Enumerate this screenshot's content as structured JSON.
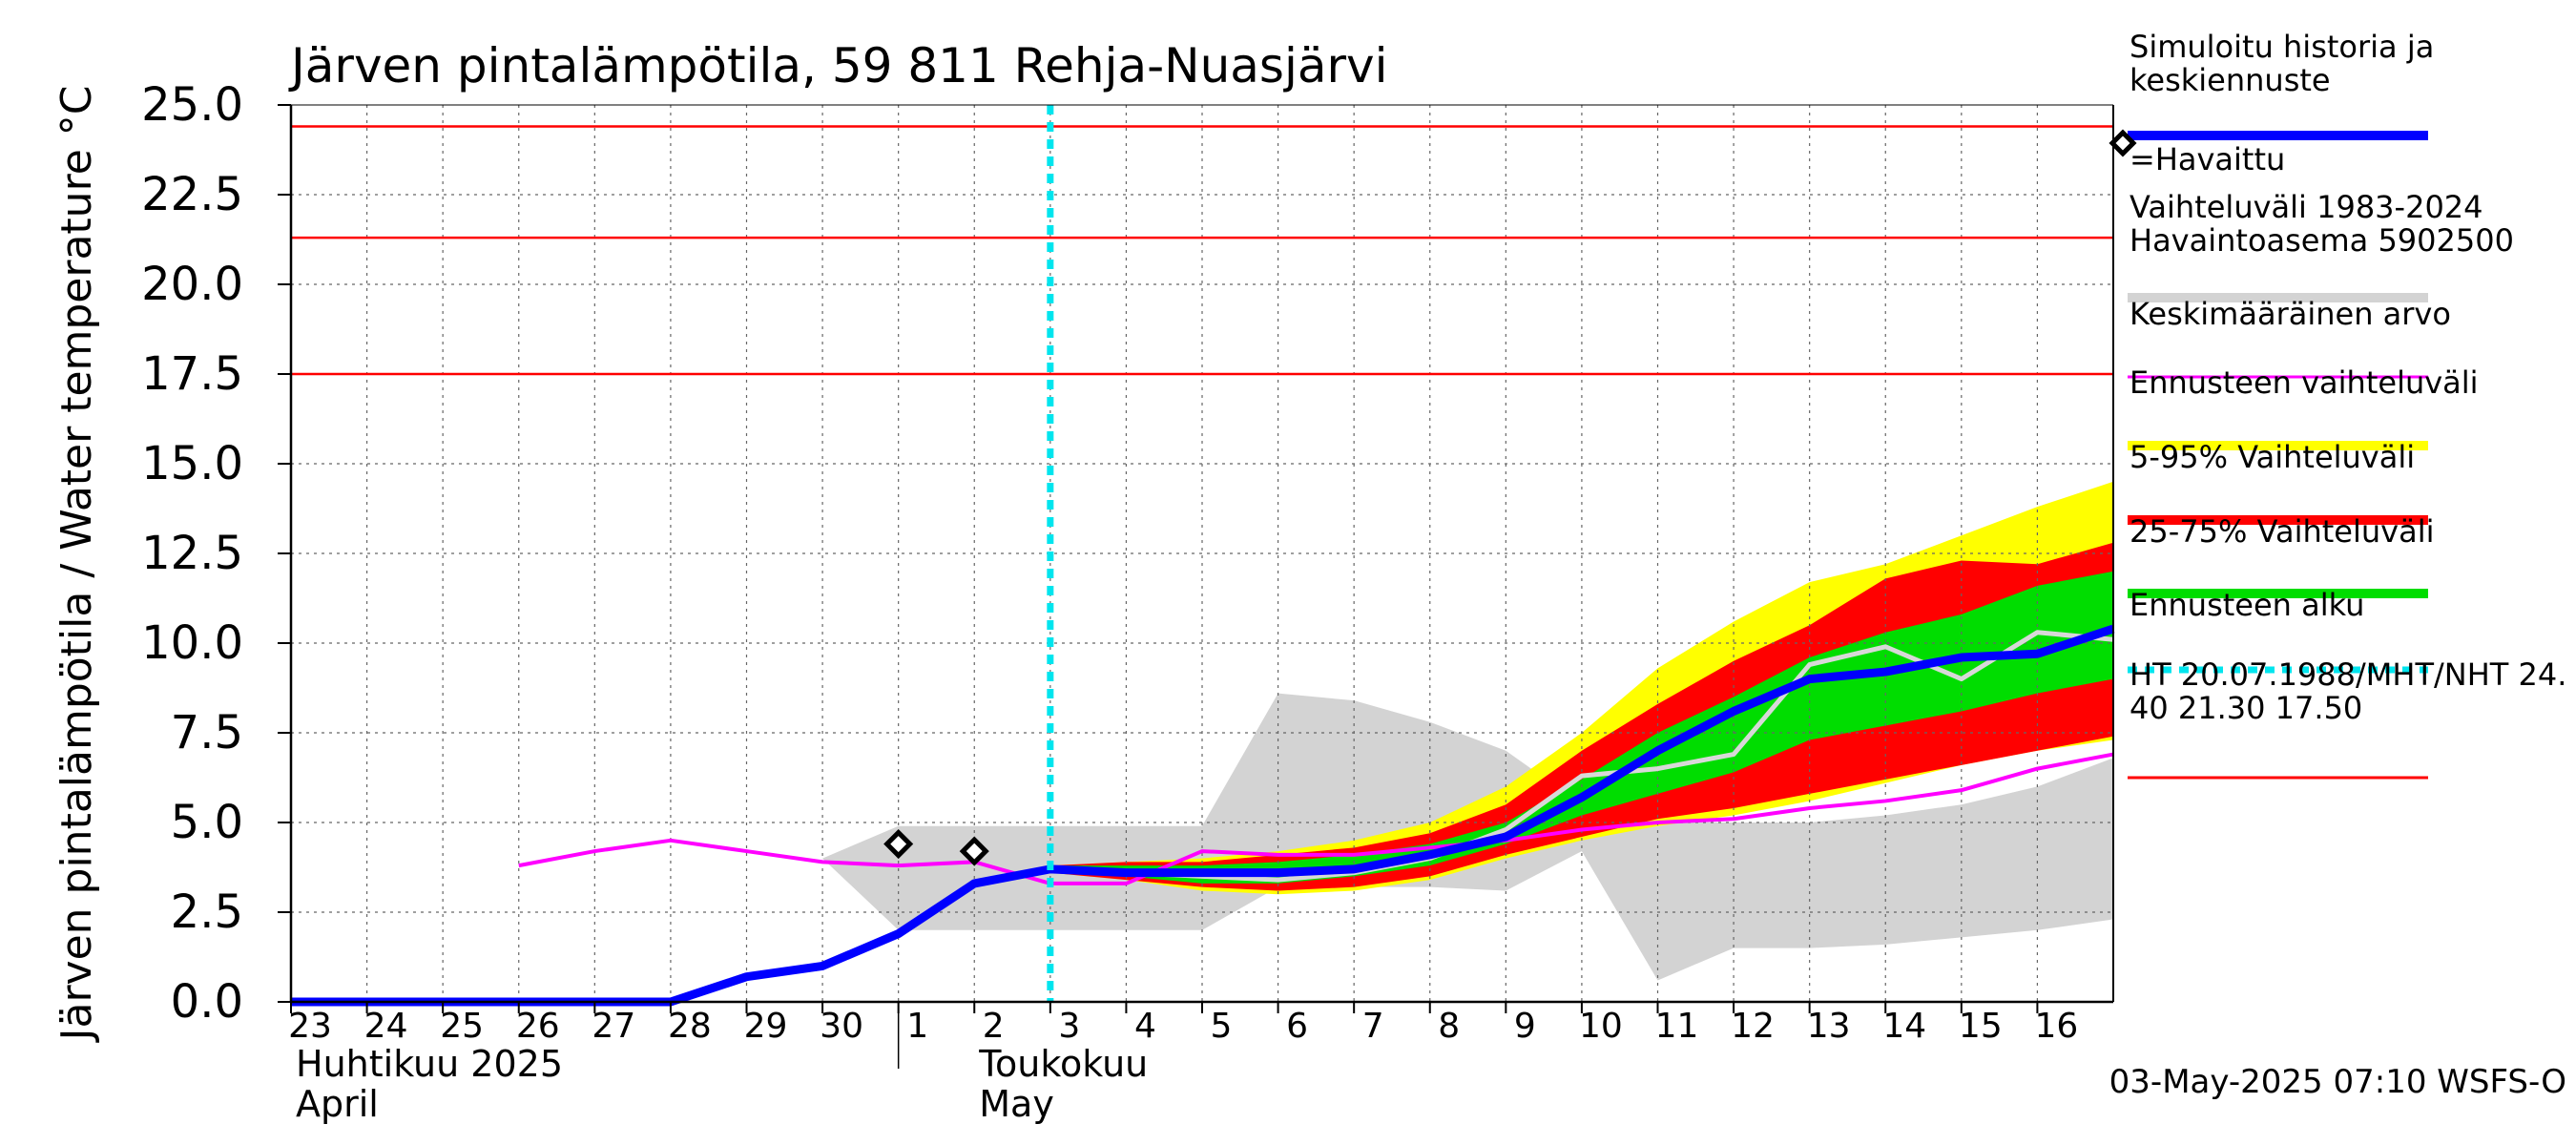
{
  "chart_data": {
    "type": "area",
    "title": "Järven pintalämpötila, 59 811 Rehja-Nuasjärvi",
    "ylabel": "Järven pintalämpötila / Water temperature °C",
    "ylim": [
      0,
      25
    ],
    "yticks": [
      "0.0",
      "2.5",
      "5.0",
      "7.5",
      "10.0",
      "12.5",
      "15.0",
      "17.5",
      "20.0",
      "22.5",
      "25.0"
    ],
    "x_start_date": "2025-04-23",
    "xlim": [
      0,
      24
    ],
    "day_labels": [
      "23",
      "24",
      "25",
      "26",
      "27",
      "28",
      "29",
      "30",
      "1",
      "2",
      "3",
      "4",
      "5",
      "6",
      "7",
      "8",
      "9",
      "10",
      "11",
      "12",
      "13",
      "14",
      "15",
      "16"
    ],
    "month_labels": [
      {
        "fi": "Huhtikuu  2025",
        "en": "April",
        "x": 0
      },
      {
        "fi": "Toukokuu",
        "en": "May",
        "x": 9
      }
    ],
    "month_divider_x": 8,
    "forecast_start_x": 10,
    "grid": true,
    "hlines": [
      24.4,
      21.3,
      17.5
    ],
    "observed": [
      {
        "x": 8,
        "y": 4.4
      },
      {
        "x": 9,
        "y": 4.2
      }
    ],
    "series": [
      {
        "name": "Vaihteluväli 1983-2024 Havaintoasema 5902500",
        "kind": "band",
        "color": "#d3d3d3",
        "x": [
          7,
          8,
          9,
          10,
          11,
          12,
          13,
          14,
          15,
          16,
          17,
          18,
          19,
          20,
          21,
          22,
          23,
          24
        ],
        "upper": [
          4.0,
          4.9,
          4.9,
          4.9,
          4.9,
          4.9,
          8.6,
          8.4,
          7.8,
          7.0,
          5.5,
          5.0,
          5.0,
          5.0,
          5.2,
          5.5,
          6.0,
          6.8
        ],
        "lower": [
          4.0,
          2.0,
          2.0,
          2.0,
          2.0,
          2.0,
          3.2,
          3.2,
          3.2,
          3.1,
          4.2,
          0.6,
          1.5,
          1.5,
          1.6,
          1.8,
          2.0,
          2.3
        ]
      },
      {
        "name": "Ennusteen vaihteluväli",
        "kind": "band",
        "color": "#ffff00",
        "x": [
          10,
          11,
          12,
          13,
          14,
          15,
          16,
          17,
          18,
          19,
          20,
          21,
          22,
          23,
          24
        ],
        "upper": [
          3.8,
          3.9,
          4.0,
          4.2,
          4.5,
          5.0,
          6.0,
          7.5,
          9.3,
          10.6,
          11.7,
          12.2,
          13.0,
          13.8,
          14.5
        ],
        "lower": [
          3.6,
          3.4,
          3.1,
          3.0,
          3.1,
          3.4,
          4.0,
          4.5,
          4.9,
          5.2,
          5.6,
          6.1,
          6.6,
          7.0,
          7.3
        ]
      },
      {
        "name": "5-95% Vaihteluväli",
        "kind": "band",
        "color": "#ff0000",
        "x": [
          10,
          11,
          12,
          13,
          14,
          15,
          16,
          17,
          18,
          19,
          20,
          21,
          22,
          23,
          24
        ],
        "upper": [
          3.8,
          3.9,
          3.9,
          4.1,
          4.3,
          4.7,
          5.5,
          7.0,
          8.3,
          9.5,
          10.5,
          11.8,
          12.3,
          12.2,
          12.8
        ],
        "lower": [
          3.6,
          3.4,
          3.2,
          3.1,
          3.2,
          3.5,
          4.1,
          4.6,
          5.1,
          5.4,
          5.8,
          6.2,
          6.6,
          7.0,
          7.4
        ]
      },
      {
        "name": "25-75% Vaihteluväli",
        "kind": "band",
        "color": "#00dd00",
        "x": [
          10,
          11,
          12,
          13,
          14,
          15,
          16,
          17,
          18,
          19,
          20,
          21,
          22,
          23,
          24
        ],
        "upper": [
          3.8,
          3.8,
          3.8,
          3.9,
          4.1,
          4.4,
          5.0,
          6.2,
          7.5,
          8.5,
          9.6,
          10.3,
          10.8,
          11.6,
          12.0
        ],
        "lower": [
          3.7,
          3.5,
          3.3,
          3.3,
          3.5,
          3.8,
          4.4,
          5.2,
          5.8,
          6.4,
          7.3,
          7.7,
          8.1,
          8.6,
          9.0
        ]
      },
      {
        "name": "",
        "kind": "line",
        "color": "#d8d8d8",
        "x": [
          10,
          11,
          12,
          13,
          14,
          15,
          16,
          17,
          18,
          19,
          20,
          21,
          22,
          23,
          24
        ],
        "y": [
          3.7,
          3.6,
          3.5,
          3.4,
          3.6,
          4.0,
          4.8,
          6.3,
          6.5,
          6.9,
          9.4,
          9.9,
          9.0,
          10.3,
          10.1
        ]
      },
      {
        "name": "Keskimääräinen arvo",
        "kind": "line",
        "color": "#ff00ff",
        "x": [
          3,
          4,
          5,
          6,
          7,
          8,
          9,
          10,
          11,
          12,
          13,
          14,
          15,
          16,
          17,
          18,
          19,
          20,
          21,
          22,
          23,
          24
        ],
        "y": [
          3.8,
          4.2,
          4.5,
          4.2,
          3.9,
          3.8,
          3.9,
          3.3,
          3.3,
          4.2,
          4.1,
          4.1,
          4.3,
          4.5,
          4.8,
          5.0,
          5.1,
          5.4,
          5.6,
          5.9,
          6.5,
          6.9
        ]
      },
      {
        "name": "Simuloitu historia ja keskiennuste",
        "kind": "line",
        "color": "#0000ff",
        "x": [
          0,
          1,
          2,
          3,
          4,
          5,
          6,
          7,
          8,
          9,
          10,
          11,
          12,
          13,
          14,
          15,
          16,
          17,
          18,
          19,
          20,
          21,
          22,
          23,
          24
        ],
        "y": [
          0,
          0,
          0,
          0,
          0,
          0,
          0.7,
          1.0,
          1.9,
          3.3,
          3.7,
          3.6,
          3.6,
          3.6,
          3.7,
          4.1,
          4.6,
          5.7,
          7.0,
          8.1,
          9.0,
          9.2,
          9.6,
          9.7,
          10.4
        ]
      }
    ],
    "legend": [
      {
        "label": "Simuloitu historia ja\nkeskiennuste",
        "color": "#0000ff",
        "style": "line-thick"
      },
      {
        "label": "=Havaittu",
        "color": "#000000",
        "style": "marker"
      },
      {
        "label": "Vaihteluväli 1983-2024\n Havaintoasema 5902500",
        "color": "#d3d3d3",
        "style": "line-thick"
      },
      {
        "label": "Keskimääräinen arvo",
        "color": "#ff00ff",
        "style": "line-thin"
      },
      {
        "label": "Ennusteen vaihteluväli",
        "color": "#ffff00",
        "style": "line-thick"
      },
      {
        "label": "5-95% Vaihteluväli",
        "color": "#ff0000",
        "style": "line-thick"
      },
      {
        "label": "25-75% Vaihteluväli",
        "color": "#00dd00",
        "style": "line-thick"
      },
      {
        "label": "Ennusteen alku",
        "color": "#00e5ee",
        "style": "line-dotted"
      },
      {
        "label": "HT 20.07.1988/MHT/NHT 24.\n40 21.30 17.50",
        "color": "#ff0000",
        "style": "line-thin"
      }
    ],
    "legend_position": "right"
  },
  "footer": {
    "timestamp": "03-May-2025 07:10 WSFS-O"
  }
}
